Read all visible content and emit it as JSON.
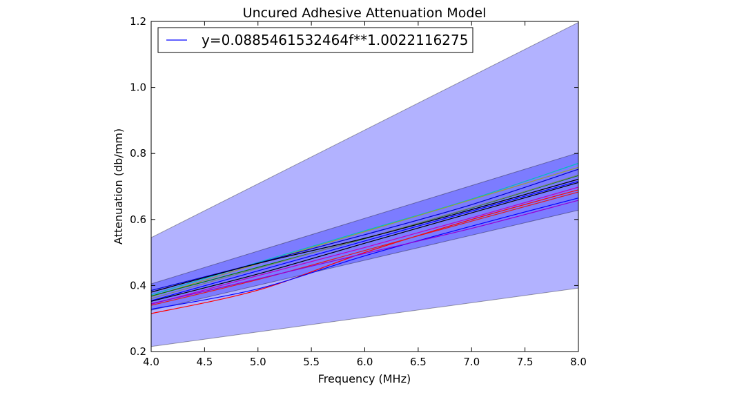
{
  "chart_data": {
    "type": "line",
    "title": "Uncured Adhesive Attenuation Model",
    "xlabel": "Frequency (MHz)",
    "ylabel": "Attenuation (db/mm)",
    "xlim": [
      4.0,
      8.0
    ],
    "ylim": [
      0.2,
      1.2
    ],
    "xticks": [
      "4.0",
      "4.5",
      "5.0",
      "5.5",
      "6.0",
      "6.5",
      "7.0",
      "7.5",
      "8.0"
    ],
    "yticks": [
      "0.2",
      "0.4",
      "0.6",
      "0.8",
      "1.0",
      "1.2"
    ],
    "grid": false,
    "legend": {
      "placement": "top-left",
      "entries": [
        {
          "label": "y=0.0885461532464f**1.0022116275",
          "color": "#0000ff"
        }
      ]
    },
    "bands": [
      {
        "color": "#0000ff",
        "opacity": 0.3,
        "x": [
          4.0,
          8.0
        ],
        "lower": [
          0.215,
          0.392
        ],
        "upper": [
          0.545,
          1.197
        ]
      },
      {
        "color": "#0000ff",
        "opacity": 0.3,
        "x": [
          4.0,
          8.0
        ],
        "lower": [
          0.325,
          0.628
        ],
        "upper": [
          0.405,
          0.802
        ]
      }
    ],
    "series": [
      {
        "color": "#0000ff",
        "x": [
          4.0,
          8.0
        ],
        "y": [
          0.354,
          0.716
        ]
      },
      {
        "color": "#00bfbf",
        "x": [
          4.0,
          5.0,
          6.0,
          7.0,
          8.0
        ],
        "y": [
          0.372,
          0.47,
          0.566,
          0.662,
          0.77
        ]
      },
      {
        "color": "#9b9b3b",
        "x": [
          4.0,
          5.0,
          6.0,
          7.0,
          8.0
        ],
        "y": [
          0.366,
          0.466,
          0.563,
          0.66,
          0.758
        ]
      },
      {
        "color": "#0000cc",
        "x": [
          4.0,
          5.0,
          6.0,
          7.0,
          8.0
        ],
        "y": [
          0.385,
          0.468,
          0.554,
          0.645,
          0.752
        ]
      },
      {
        "color": "#008000",
        "x": [
          4.0,
          5.0,
          6.0,
          7.0,
          8.0
        ],
        "y": [
          0.368,
          0.455,
          0.542,
          0.635,
          0.733
        ]
      },
      {
        "color": "#7f7f7f",
        "x": [
          4.0,
          5.0,
          6.0,
          7.0,
          8.0
        ],
        "y": [
          0.36,
          0.452,
          0.543,
          0.636,
          0.735
        ]
      },
      {
        "color": "#000000",
        "x": [
          4.0,
          5.0,
          6.0,
          7.0,
          8.0
        ],
        "y": [
          0.38,
          0.467,
          0.543,
          0.63,
          0.722
        ]
      },
      {
        "color": "#000000",
        "x": [
          4.0,
          5.0,
          6.0,
          7.0,
          8.0
        ],
        "y": [
          0.352,
          0.435,
          0.528,
          0.62,
          0.712
        ]
      },
      {
        "color": "#bf00bf",
        "x": [
          4.0,
          5.0,
          6.0,
          7.0,
          8.0
        ],
        "y": [
          0.343,
          0.43,
          0.515,
          0.605,
          0.698
        ]
      },
      {
        "color": "#ff0000",
        "x": [
          4.0,
          5.0,
          6.0,
          7.0,
          8.0
        ],
        "y": [
          0.315,
          0.386,
          0.5,
          0.6,
          0.69
        ]
      },
      {
        "color": "#e31a1c",
        "x": [
          4.0,
          5.0,
          6.0,
          7.0,
          8.0
        ],
        "y": [
          0.34,
          0.418,
          0.506,
          0.595,
          0.683
        ]
      },
      {
        "color": "#0000ff",
        "x": [
          4.0,
          5.0,
          6.0,
          7.0,
          8.0
        ],
        "y": [
          0.328,
          0.39,
          0.49,
          0.58,
          0.665
        ]
      },
      {
        "color": "#9400d3",
        "x": [
          4.0,
          5.0,
          6.0,
          7.0,
          8.0
        ],
        "y": [
          0.345,
          0.42,
          0.497,
          0.573,
          0.658
        ]
      }
    ]
  }
}
